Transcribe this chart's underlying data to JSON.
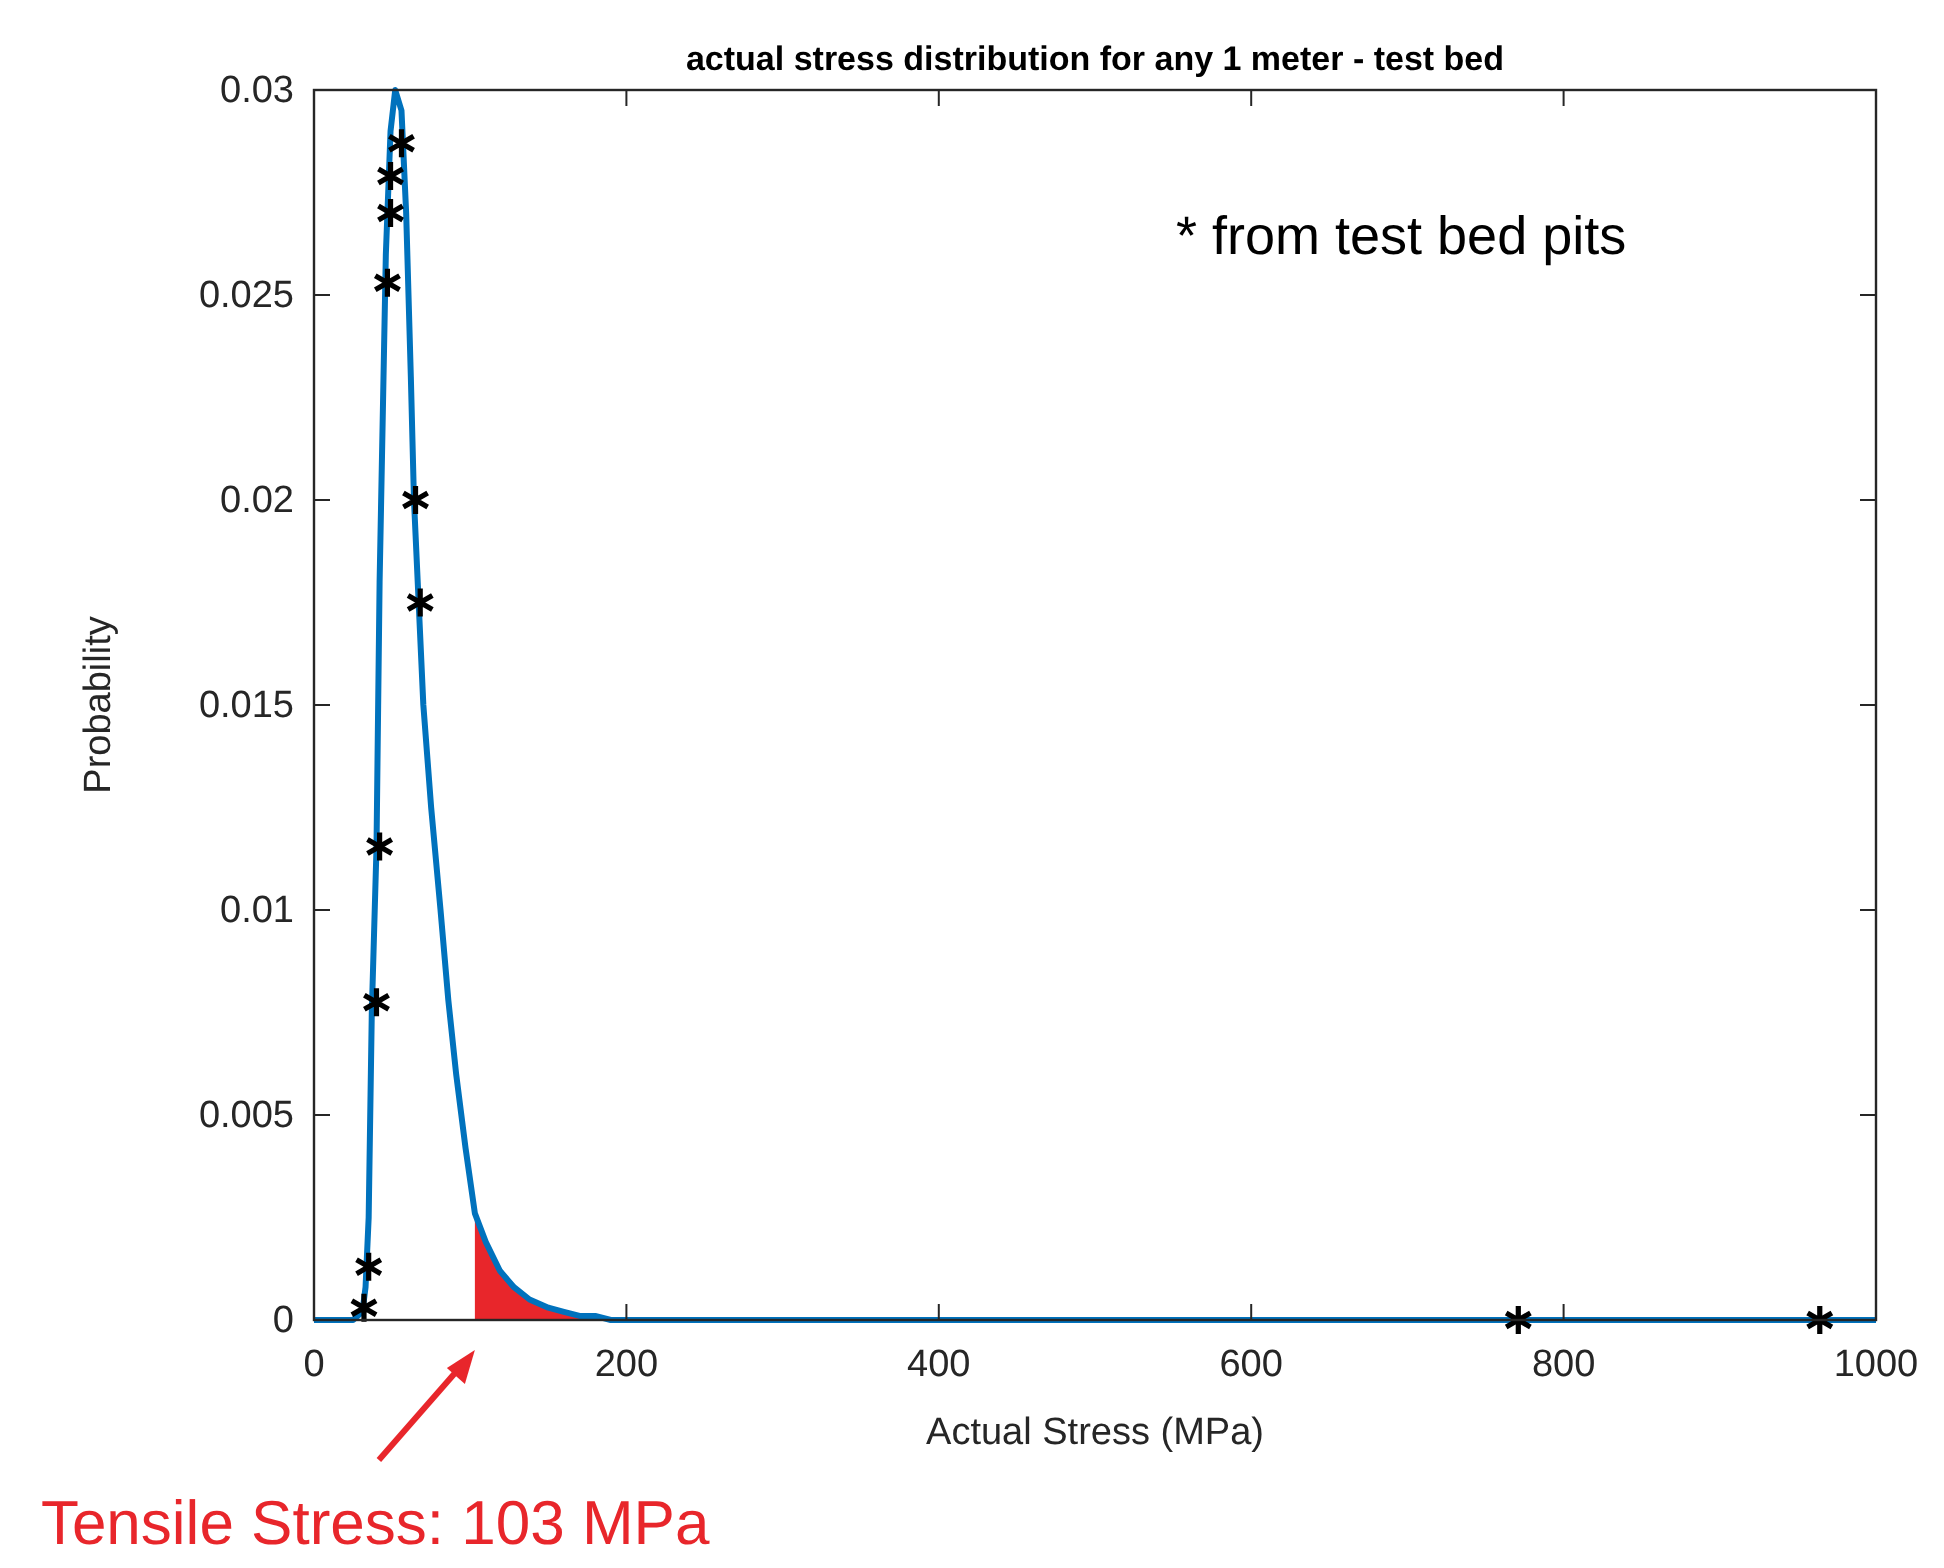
{
  "chart_data": {
    "type": "line",
    "title": "actual stress distribution for any 1 meter - test bed",
    "xlabel": "Actual Stress (MPa)",
    "ylabel": "Probability",
    "xlim": [
      0,
      1000
    ],
    "ylim": [
      0,
      0.03
    ],
    "xticks": [
      0,
      200,
      400,
      600,
      800,
      1000
    ],
    "yticks": [
      0,
      0.005,
      0.01,
      0.015,
      0.02,
      0.025,
      0.03
    ],
    "series": [
      {
        "type": "area",
        "color": "#e8262b",
        "x": [
          103,
          110,
          119,
          128,
          138,
          150,
          160,
          170,
          180
        ],
        "values": [
          0.0026,
          0.0019,
          0.0012,
          0.0008,
          0.0005,
          0.0003,
          0.0002,
          0.0001,
          0.0001
        ]
      },
      {
        "color": "#0072bd",
        "line_style": "solid",
        "marker": "none",
        "x": [
          0,
          25,
          31,
          33,
          35,
          37,
          40,
          42,
          44,
          46,
          49,
          52,
          56,
          59,
          62,
          64,
          67,
          70,
          75,
          81,
          86,
          91,
          97,
          103,
          110,
          119,
          128,
          138,
          150,
          160,
          170,
          180,
          190,
          1000
        ],
        "values": [
          0,
          0,
          0.0002,
          0.0008,
          0.0025,
          0.0075,
          0.0115,
          0.018,
          0.022,
          0.026,
          0.029,
          0.03,
          0.0295,
          0.027,
          0.023,
          0.02,
          0.0175,
          0.015,
          0.0125,
          0.01,
          0.0078,
          0.006,
          0.0042,
          0.0026,
          0.0019,
          0.0012,
          0.0008,
          0.0005,
          0.0003,
          0.0002,
          0.0001,
          0.0001,
          0,
          0
        ]
      },
      {
        "type": "scatter",
        "color": "#000000",
        "marker": "cross",
        "x": [
          56,
          49,
          49,
          47,
          65,
          68,
          42,
          40,
          35,
          32,
          771,
          964
        ],
        "values": [
          0.0287,
          0.0279,
          0.027,
          0.0253,
          0.02,
          0.0175,
          0.01155,
          0.00775,
          0.0013,
          0.0003,
          0,
          0
        ]
      }
    ],
    "annotations": [
      "* from test bed pits",
      {
        "text": "Tensile Stress: 103 MPa",
        "x": 103,
        "y": 0
      }
    ]
  }
}
